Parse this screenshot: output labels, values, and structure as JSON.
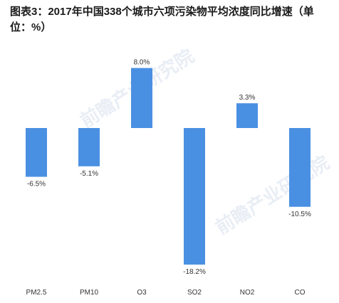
{
  "title": "图表3：2017年中国338个城市六项污染物平均浓度同比增速（单位：%）",
  "colors": {
    "bar": "#4a90e2"
  },
  "chart_data": {
    "type": "bar",
    "title": "图表3：2017年中国338个城市六项污染物平均浓度同比增速（单位：%）",
    "categories": [
      "PM2.5",
      "PM10",
      "O3",
      "SO2",
      "NO2",
      "CO"
    ],
    "values": [
      -6.5,
      -5.1,
      8.0,
      -18.2,
      3.3,
      -10.5
    ],
    "value_labels": [
      "-6.5%",
      "-5.1%",
      "8.0%",
      "-18.2%",
      "3.3%",
      "-10.5%"
    ],
    "xlabel": "",
    "ylabel": "",
    "ylim": [
      -18.2,
      8.0
    ],
    "grid": false,
    "legend": "none"
  }
}
